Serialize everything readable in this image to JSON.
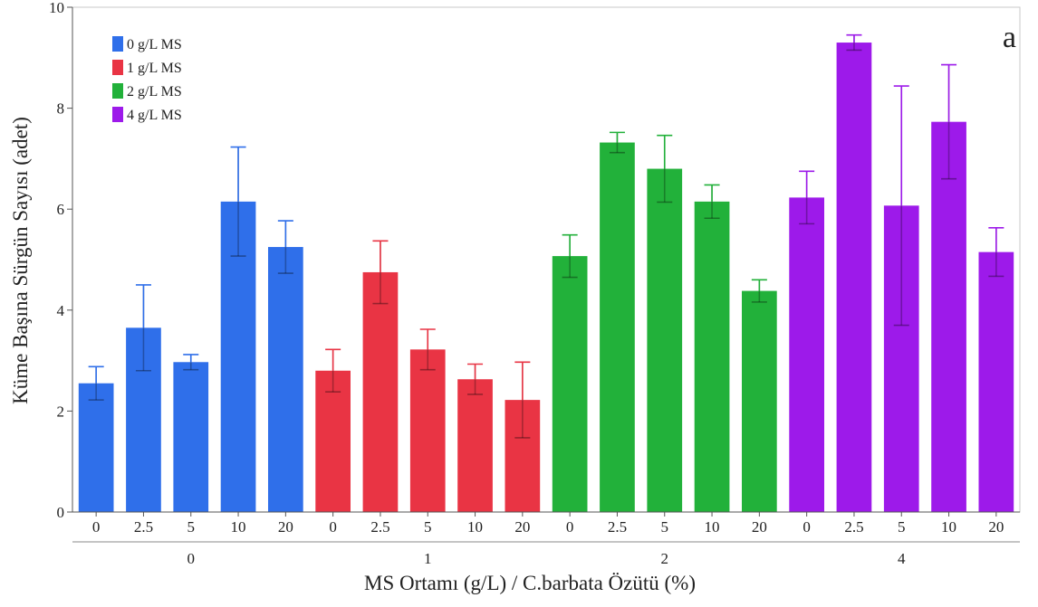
{
  "chart_data": {
    "type": "bar",
    "panel_label": "a",
    "ylabel": "Küme Başına Sürgün Sayısı (adet)",
    "xlabel": "MS Ortamı (g/L) / C.barbata Özütü (%)",
    "ylim": [
      0,
      10
    ],
    "yticks": [
      0,
      2,
      4,
      6,
      8,
      10
    ],
    "grid": false,
    "legend_position": "top-left",
    "series": [
      {
        "name": "0 g/L MS",
        "group_label": "0",
        "color": "#2f6fea",
        "categories": [
          "0",
          "2.5",
          "5",
          "10",
          "20"
        ],
        "values": [
          2.55,
          3.65,
          2.97,
          6.15,
          5.25
        ],
        "errors": [
          0.33,
          0.85,
          0.15,
          1.08,
          0.52
        ]
      },
      {
        "name": "1 g/L MS",
        "group_label": "1",
        "color": "#e93444",
        "categories": [
          "0",
          "2.5",
          "5",
          "10",
          "20"
        ],
        "values": [
          2.8,
          4.75,
          3.22,
          2.63,
          2.22
        ],
        "errors": [
          0.42,
          0.62,
          0.4,
          0.3,
          0.75
        ]
      },
      {
        "name": "2 g/L MS",
        "group_label": "2",
        "color": "#22b13a",
        "categories": [
          "0",
          "2.5",
          "5",
          "10",
          "20"
        ],
        "values": [
          5.07,
          7.32,
          6.8,
          6.15,
          4.38
        ],
        "errors": [
          0.42,
          0.2,
          0.66,
          0.33,
          0.22
        ]
      },
      {
        "name": "4 g/L MS",
        "group_label": "4",
        "color": "#9d1aea",
        "categories": [
          "0",
          "2.5",
          "5",
          "10",
          "20"
        ],
        "values": [
          6.23,
          9.3,
          6.07,
          7.73,
          5.15
        ],
        "errors": [
          0.52,
          0.15,
          2.37,
          1.13,
          0.48
        ]
      }
    ]
  }
}
